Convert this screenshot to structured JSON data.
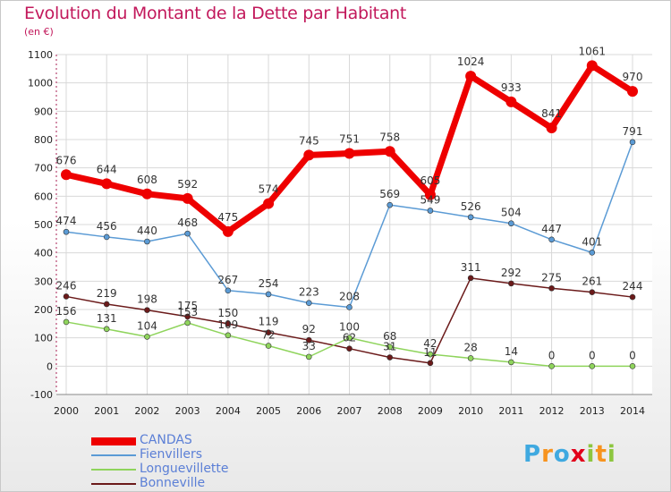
{
  "title": "Evolution du Montant de la Dette par Habitant",
  "unit": "(en €)",
  "logo": {
    "text": "Proxiti",
    "colors": [
      "#3fa9e0",
      "#f7931e",
      "#3fa9e0",
      "#e2001a",
      "#8dc63f",
      "#f7931e",
      "#8dc63f"
    ]
  },
  "chart_data": {
    "type": "line",
    "x": [
      2000,
      2001,
      2002,
      2003,
      2004,
      2005,
      2006,
      2007,
      2008,
      2009,
      2010,
      2011,
      2012,
      2013,
      2014
    ],
    "ylim": [
      -100,
      1100
    ],
    "yticks": [
      -100,
      0,
      100,
      200,
      300,
      400,
      500,
      600,
      700,
      800,
      900,
      1000,
      1100
    ],
    "grid": true,
    "legend_position": "bottom-left",
    "series": [
      {
        "name": "Bonneville",
        "color": "#6b1a1a",
        "width": 1.5,
        "marker": 3,
        "values": [
          246,
          219,
          198,
          175,
          150,
          119,
          92,
          62,
          31,
          11,
          311,
          292,
          275,
          261,
          244
        ],
        "labels": [
          "246",
          "219",
          "198",
          "175",
          "150",
          "119",
          "92",
          "62",
          "31",
          "11",
          "311",
          "292",
          "275",
          "261",
          "244"
        ]
      },
      {
        "name": "Longuevillette",
        "color": "#8fd45c",
        "width": 1.5,
        "marker": 3,
        "values": [
          156,
          131,
          104,
          153,
          109,
          72,
          33,
          100,
          68,
          42,
          28,
          14,
          0,
          0,
          0
        ],
        "labels": [
          "156",
          "131",
          "104",
          "153",
          "109",
          "72",
          "33",
          "100",
          "68",
          "42",
          "28",
          "14",
          "0",
          "0",
          "0"
        ]
      },
      {
        "name": "Fienvillers",
        "color": "#5b9bd5",
        "width": 1.5,
        "marker": 3,
        "values": [
          474,
          456,
          440,
          468,
          267,
          254,
          223,
          208,
          569,
          549,
          526,
          504,
          447,
          401,
          791
        ],
        "labels": [
          "474",
          "456",
          "440",
          "468",
          "267",
          "254",
          "223",
          "208",
          "569",
          "549",
          "526",
          "504",
          "447",
          "401",
          "791"
        ]
      },
      {
        "name": "CANDAS",
        "color": "#ee0000",
        "width": 7,
        "marker": 6,
        "values": [
          676,
          644,
          608,
          592,
          475,
          574,
          745,
          751,
          758,
          605,
          1024,
          933,
          841,
          1061,
          970
        ],
        "labels": [
          "676",
          "644",
          "608",
          "592",
          "475",
          "574",
          "745",
          "751",
          "758",
          "605",
          "1024",
          "933",
          "841",
          "1061",
          "970"
        ]
      }
    ]
  },
  "legend": [
    {
      "name": "CANDAS",
      "color": "#ee0000",
      "thickness": 9,
      "label_color": "#5b7fd6"
    },
    {
      "name": "Fienvillers",
      "color": "#5b9bd5",
      "thickness": 2,
      "label_color": "#5b7fd6"
    },
    {
      "name": "Longuevillette",
      "color": "#8fd45c",
      "thickness": 2,
      "label_color": "#5b7fd6"
    },
    {
      "name": "Bonneville",
      "color": "#6b1a1a",
      "thickness": 2,
      "label_color": "#5b7fd6"
    }
  ]
}
